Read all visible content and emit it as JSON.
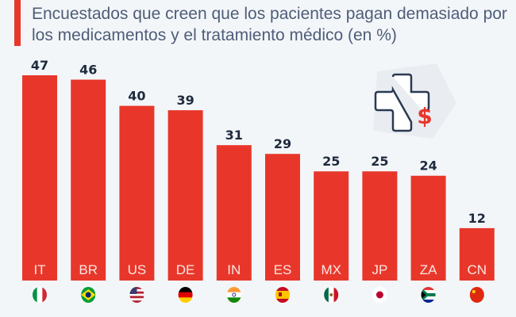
{
  "title": "Encuestados que creen que los pacientes pagan demasiado por los medicamentos y el tratamiento médico (en %)",
  "colors": {
    "bar": "#e8372a",
    "value_text": "#1e2a3d",
    "title": "#4e5d78",
    "background": "#f3f6f9"
  },
  "icon": "medical-cross-dollar-icon",
  "chart_data": {
    "type": "bar",
    "title": "Encuestados que creen que los pacientes pagan demasiado por los medicamentos y el tratamiento médico (en %)",
    "categories": [
      "IT",
      "BR",
      "US",
      "DE",
      "IN",
      "ES",
      "MX",
      "JP",
      "ZA",
      "CN"
    ],
    "values": [
      47,
      46,
      40,
      39,
      31,
      29,
      25,
      25,
      24,
      12
    ],
    "flags": [
      "italy-flag",
      "brazil-flag",
      "usa-flag",
      "germany-flag",
      "india-flag",
      "spain-flag",
      "mexico-flag",
      "japan-flag",
      "south-africa-flag",
      "china-flag"
    ],
    "ylim": [
      0,
      47
    ],
    "grid": false,
    "xlabel": "",
    "ylabel": ""
  }
}
